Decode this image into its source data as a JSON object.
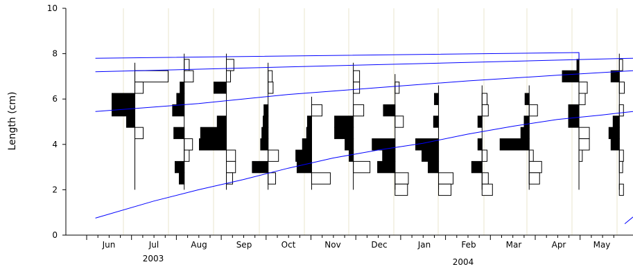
{
  "chart_data": {
    "type": "length-frequency histogram with growth curves",
    "title": "",
    "ylabel": "Length (cm)",
    "xlabel": "",
    "ylim": [
      0,
      10
    ],
    "yticks": [
      0,
      2,
      4,
      6,
      8,
      10
    ],
    "grid": "vertical lines at sampling dates",
    "months": [
      "Jun",
      "Jul",
      "Aug",
      "Sep",
      "Oct",
      "Nov",
      "Dec",
      "Jan",
      "Feb",
      "Mar",
      "Apr",
      "May"
    ],
    "years": [
      "2003",
      "2004"
    ],
    "colors": {
      "histogram": "#000000",
      "curves": "#0000ff",
      "grid": "#e8e4cc"
    },
    "samples": [
      {
        "month": "Jun",
        "pos": 0.58,
        "bins": [
          {
            "y": 7.0,
            "v": 0.8,
            "f": 0
          },
          {
            "y": 6.5,
            "v": 0.2,
            "f": 0
          },
          {
            "y": 6.0,
            "v": 0.55,
            "f": 1
          },
          {
            "y": 5.5,
            "v": 0.55,
            "f": 1
          },
          {
            "y": 5.0,
            "v": 0.2,
            "f": 1
          },
          {
            "y": 4.5,
            "v": 0.2,
            "f": 0
          }
        ]
      },
      {
        "month": "Jul",
        "pos": 1.68,
        "bins": [
          {
            "y": 7.5,
            "v": 0.12,
            "f": 0
          },
          {
            "y": 7.0,
            "v": 0.22,
            "f": 0
          },
          {
            "y": 6.5,
            "v": 0.1,
            "f": 1
          },
          {
            "y": 6.0,
            "v": 0.18,
            "f": 1
          },
          {
            "y": 5.5,
            "v": 0.28,
            "f": 1
          },
          {
            "y": 4.5,
            "v": 0.25,
            "f": 1
          },
          {
            "y": 4.0,
            "v": 0.2,
            "f": 0
          },
          {
            "y": 3.5,
            "v": 0.12,
            "f": 0
          },
          {
            "y": 3.0,
            "v": 0.22,
            "f": 1
          },
          {
            "y": 2.5,
            "v": 0.12,
            "f": 1
          }
        ]
      },
      {
        "month": "Aug",
        "pos": 2.62,
        "bins": [
          {
            "y": 7.5,
            "v": 0.18,
            "f": 0
          },
          {
            "y": 7.0,
            "v": 0.1,
            "f": 0
          },
          {
            "y": 6.5,
            "v": 0.3,
            "f": 1
          },
          {
            "y": 5.0,
            "v": 0.22,
            "f": 1
          },
          {
            "y": 4.5,
            "v": 0.62,
            "f": 1
          },
          {
            "y": 4.0,
            "v": 0.65,
            "f": 1
          },
          {
            "y": 3.5,
            "v": 0.22,
            "f": 0
          },
          {
            "y": 3.0,
            "v": 0.22,
            "f": 0
          },
          {
            "y": 2.5,
            "v": 0.15,
            "f": 0
          }
        ]
      },
      {
        "month": "Sep",
        "pos": 3.55,
        "bins": [
          {
            "y": 7.0,
            "v": 0.1,
            "f": 0
          },
          {
            "y": 6.5,
            "v": 0.12,
            "f": 0
          },
          {
            "y": 5.5,
            "v": 0.1,
            "f": 1
          },
          {
            "y": 5.0,
            "v": 0.12,
            "f": 1
          },
          {
            "y": 4.5,
            "v": 0.15,
            "f": 1
          },
          {
            "y": 4.0,
            "v": 0.18,
            "f": 1
          },
          {
            "y": 3.5,
            "v": 0.25,
            "f": 0
          },
          {
            "y": 3.0,
            "v": 0.38,
            "f": 1
          },
          {
            "y": 2.5,
            "v": 0.18,
            "f": 0
          }
        ]
      },
      {
        "month": "Oct",
        "pos": 4.52,
        "bins": [
          {
            "y": 5.5,
            "v": 0.25,
            "f": 0
          },
          {
            "y": 5.0,
            "v": 0.1,
            "f": 1
          },
          {
            "y": 4.5,
            "v": 0.12,
            "f": 1
          },
          {
            "y": 4.0,
            "v": 0.22,
            "f": 1
          },
          {
            "y": 3.5,
            "v": 0.38,
            "f": 1
          },
          {
            "y": 3.0,
            "v": 0.35,
            "f": 1
          },
          {
            "y": 2.5,
            "v": 0.45,
            "f": 0
          }
        ]
      },
      {
        "month": "Nov",
        "pos": 5.45,
        "bins": [
          {
            "y": 7.0,
            "v": 0.15,
            "f": 0
          },
          {
            "y": 6.5,
            "v": 0.15,
            "f": 0
          },
          {
            "y": 5.5,
            "v": 0.25,
            "f": 0
          },
          {
            "y": 5.0,
            "v": 0.45,
            "f": 1
          },
          {
            "y": 4.5,
            "v": 0.45,
            "f": 1
          },
          {
            "y": 4.0,
            "v": 0.2,
            "f": 1
          },
          {
            "y": 3.5,
            "v": 0.1,
            "f": 1
          },
          {
            "y": 3.0,
            "v": 0.4,
            "f": 0
          }
        ]
      },
      {
        "month": "Dec",
        "pos": 6.38,
        "bins": [
          {
            "y": 6.5,
            "v": 0.1,
            "f": 0
          },
          {
            "y": 5.5,
            "v": 0.28,
            "f": 1
          },
          {
            "y": 5.0,
            "v": 0.2,
            "f": 0
          },
          {
            "y": 4.0,
            "v": 0.55,
            "f": 1
          },
          {
            "y": 3.5,
            "v": 0.3,
            "f": 1
          },
          {
            "y": 3.0,
            "v": 0.42,
            "f": 1
          },
          {
            "y": 2.5,
            "v": 0.32,
            "f": 0
          },
          {
            "y": 2.0,
            "v": 0.3,
            "f": 0
          }
        ]
      },
      {
        "month": "Jan",
        "pos": 7.35,
        "bins": [
          {
            "y": 6.0,
            "v": 0.1,
            "f": 1
          },
          {
            "y": 5.0,
            "v": 0.12,
            "f": 1
          },
          {
            "y": 4.0,
            "v": 0.55,
            "f": 1
          },
          {
            "y": 3.5,
            "v": 0.4,
            "f": 1
          },
          {
            "y": 3.0,
            "v": 0.25,
            "f": 1
          },
          {
            "y": 2.5,
            "v": 0.35,
            "f": 0
          },
          {
            "y": 2.0,
            "v": 0.3,
            "f": 0
          }
        ]
      },
      {
        "month": "Feb",
        "pos": 8.32,
        "bins": [
          {
            "y": 6.0,
            "v": 0.12,
            "f": 0
          },
          {
            "y": 5.5,
            "v": 0.15,
            "f": 0
          },
          {
            "y": 5.0,
            "v": 0.1,
            "f": 1
          },
          {
            "y": 4.0,
            "v": 0.1,
            "f": 1
          },
          {
            "y": 3.5,
            "v": 0.12,
            "f": 0
          },
          {
            "y": 3.0,
            "v": 0.25,
            "f": 1
          },
          {
            "y": 2.5,
            "v": 0.15,
            "f": 0
          },
          {
            "y": 2.0,
            "v": 0.25,
            "f": 0
          }
        ]
      },
      {
        "month": "Apr",
        "pos": 9.37,
        "bins": [
          {
            "y": 6.0,
            "v": 0.1,
            "f": 1
          },
          {
            "y": 5.5,
            "v": 0.2,
            "f": 0
          },
          {
            "y": 5.0,
            "v": 0.12,
            "f": 1
          },
          {
            "y": 4.5,
            "v": 0.2,
            "f": 1
          },
          {
            "y": 4.0,
            "v": 0.7,
            "f": 1
          },
          {
            "y": 3.5,
            "v": 0.1,
            "f": 0
          },
          {
            "y": 3.0,
            "v": 0.3,
            "f": 0
          },
          {
            "y": 2.5,
            "v": 0.25,
            "f": 0
          }
        ]
      },
      {
        "month": "Apr",
        "pos": 10.48,
        "bins": [
          {
            "y": 7.5,
            "v": 0.05,
            "f": 1
          },
          {
            "y": 7.0,
            "v": 0.4,
            "f": 1
          },
          {
            "y": 6.5,
            "v": 0.2,
            "f": 0
          },
          {
            "y": 6.0,
            "v": 0.15,
            "f": 0
          },
          {
            "y": 5.5,
            "v": 0.25,
            "f": 1
          },
          {
            "y": 5.0,
            "v": 0.25,
            "f": 1
          },
          {
            "y": 4.5,
            "v": 0.25,
            "f": 0
          },
          {
            "y": 4.0,
            "v": 0.25,
            "f": 0
          },
          {
            "y": 3.5,
            "v": 0.08,
            "f": 0
          }
        ]
      },
      {
        "month": "May",
        "pos": 11.38,
        "bins": [
          {
            "y": 7.5,
            "v": 0.08,
            "f": 0
          },
          {
            "y": 7.0,
            "v": 0.2,
            "f": 1
          },
          {
            "y": 6.5,
            "v": 0.12,
            "f": 0
          },
          {
            "y": 5.5,
            "v": 0.1,
            "f": 0
          },
          {
            "y": 5.0,
            "v": 0.15,
            "f": 1
          },
          {
            "y": 4.5,
            "v": 0.25,
            "f": 1
          },
          {
            "y": 4.0,
            "v": 0.2,
            "f": 1
          },
          {
            "y": 3.5,
            "v": 0.1,
            "f": 0
          },
          {
            "y": 3.0,
            "v": 0.08,
            "f": 0
          },
          {
            "y": 2.0,
            "v": 0.1,
            "f": 0
          }
        ]
      }
    ],
    "growth_curves": [
      {
        "points": [
          [
            -0.3,
            7.8
          ],
          [
            10.48,
            8.05
          ]
        ],
        "end_drop_to": 7.8
      },
      {
        "points": [
          [
            -0.3,
            7.2
          ],
          [
            12.0,
            7.8
          ]
        ]
      },
      {
        "points": [
          [
            -0.3,
            5.45
          ],
          [
            2.0,
            5.8
          ],
          [
            4.0,
            6.2
          ],
          [
            6.0,
            6.5
          ],
          [
            8.0,
            6.8
          ],
          [
            10.0,
            7.05
          ],
          [
            12.0,
            7.25
          ]
        ]
      },
      {
        "points": [
          [
            -0.3,
            0.75
          ],
          [
            1.0,
            1.5
          ],
          [
            2.0,
            2.0
          ],
          [
            3.0,
            2.45
          ],
          [
            4.0,
            2.95
          ],
          [
            5.0,
            3.4
          ],
          [
            6.0,
            3.75
          ],
          [
            7.0,
            4.05
          ],
          [
            8.0,
            4.45
          ],
          [
            9.0,
            4.8
          ],
          [
            10.0,
            5.1
          ],
          [
            11.0,
            5.3
          ],
          [
            12.0,
            5.45
          ]
        ]
      },
      {
        "points": [
          [
            11.5,
            0.5
          ],
          [
            12.0,
            0.8
          ]
        ]
      }
    ]
  }
}
